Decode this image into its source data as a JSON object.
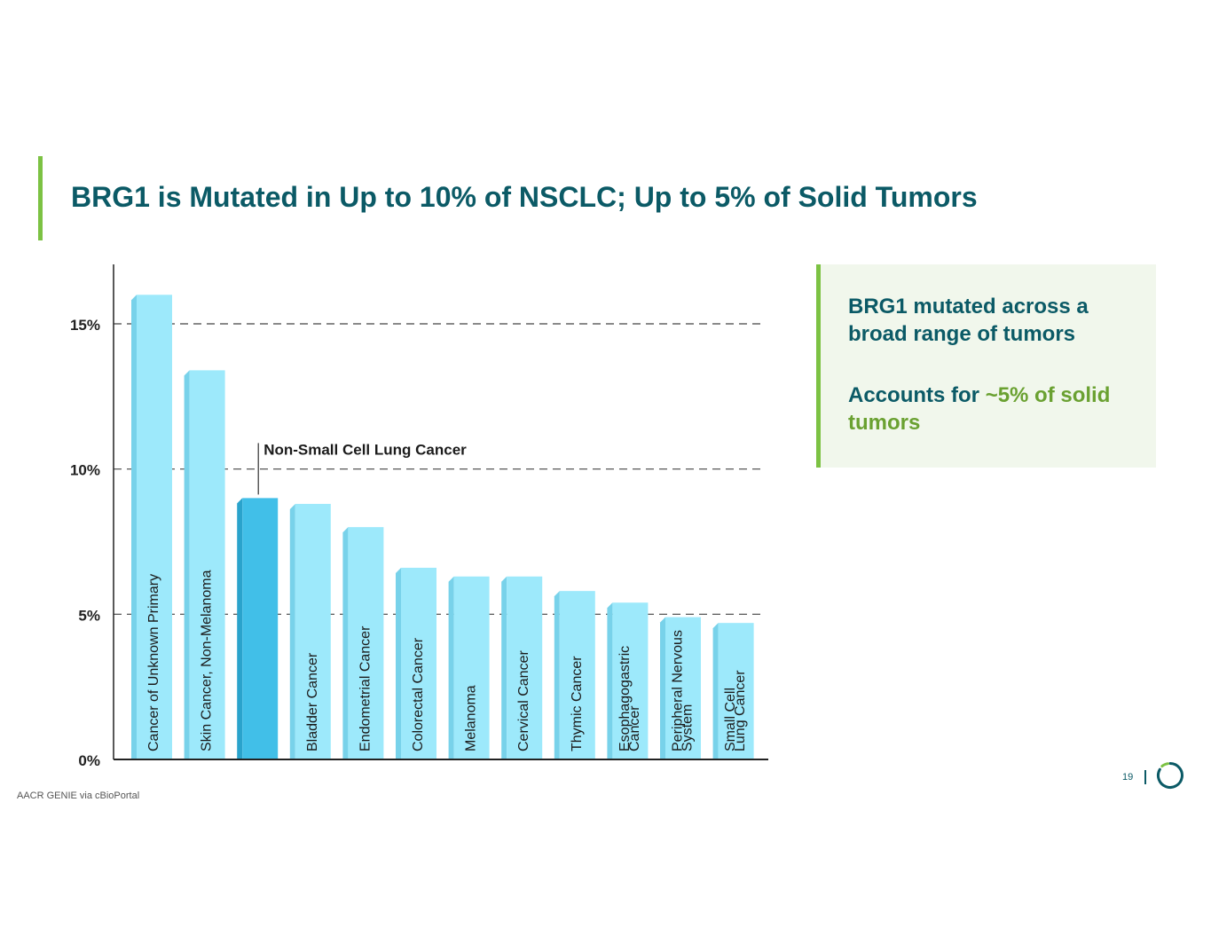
{
  "slide": {
    "title": "BRG1 is Mutated in Up to 10% of NSCLC; Up to 5% of Solid Tumors",
    "source": "AACR GENIE via cBioPortal",
    "page_number": "19"
  },
  "callout": {
    "line1": "BRG1 mutated across a broad range of tumors",
    "line2_prefix": "Accounts for ",
    "line2_highlight": "~5% of solid tumors"
  },
  "colors": {
    "title": "#0b5a66",
    "accent_green": "#7cc243",
    "highlight_green": "#6aa131",
    "bar": "#9de9fb",
    "bar_side": "#78d2ea",
    "bar_highlight": "#41bfe8",
    "bar_highlight_side": "#2aa3cc"
  },
  "chart_data": {
    "type": "bar",
    "title": "",
    "xlabel": "",
    "ylabel": "",
    "ylim": [
      0,
      17
    ],
    "yticks": [
      0,
      5,
      10,
      15
    ],
    "ytick_labels": [
      "0%",
      "5%",
      "10%",
      "15%"
    ],
    "gridlines": [
      5,
      10,
      15
    ],
    "categories": [
      "Cancer of Unknown Primary",
      "Skin Cancer, Non-Melanoma",
      "Non-Small Cell Lung Cancer",
      "Bladder Cancer",
      "Endometrial Cancer",
      "Colorectal Cancer",
      "Melanoma",
      "Cervical Cancer",
      "Thymic Cancer",
      "Esophagogastric Cancer",
      "Peripheral Nervous System",
      "Small Cell Lung Cancer"
    ],
    "bar_labels": [
      [
        "Cancer of Unknown Primary"
      ],
      [
        "Skin Cancer, Non-Melanoma"
      ],
      [],
      [
        "Bladder Cancer"
      ],
      [
        "Endometrial Cancer"
      ],
      [
        "Colorectal Cancer"
      ],
      [
        "Melanoma"
      ],
      [
        "Cervical Cancer"
      ],
      [
        "Thymic Cancer"
      ],
      [
        "Esophagogastric",
        "Cancer"
      ],
      [
        "Peripheral Nervous",
        "System"
      ],
      [
        "Small Cell",
        "Lung Cancer"
      ]
    ],
    "values": [
      16.0,
      13.4,
      9.0,
      8.8,
      8.0,
      6.6,
      6.3,
      6.3,
      5.8,
      5.4,
      4.9,
      4.7
    ],
    "highlight_index": 2,
    "annotation": "Non-Small Cell Lung Cancer"
  }
}
